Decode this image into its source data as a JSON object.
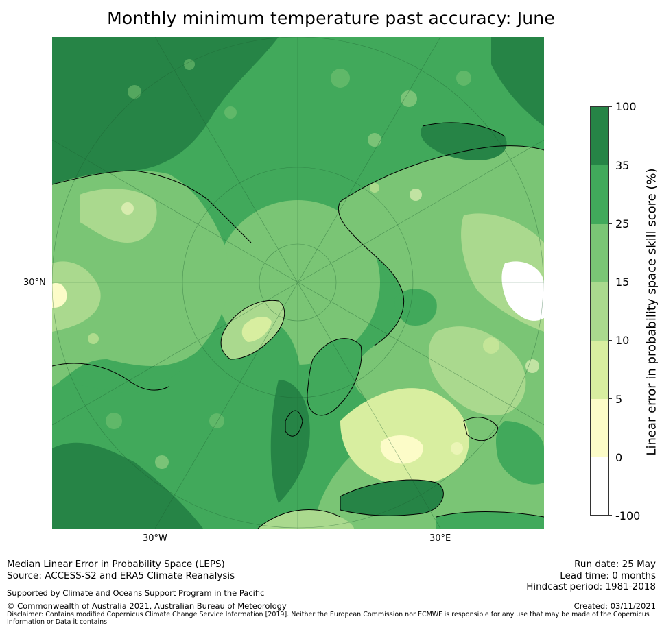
{
  "title": "Monthly minimum temperature past accuracy: June",
  "map": {
    "lon_labels": [
      "30°W",
      "30°E"
    ],
    "lat_label": "30°N",
    "projection": "north-polar-stereographic",
    "colors": {
      "water_high": "#268446",
      "land_mid": "#41a95b",
      "land_low": "#7ac575",
      "land_pale": "#aad98e",
      "land_yellow": "#d8eea0",
      "land_cream": "#fcfcc8",
      "graticule": "#1c5e30",
      "coast": "#000000"
    }
  },
  "colorbar": {
    "title": "Linear error in probability space skill score (%)",
    "levels": [
      "100",
      "35",
      "25",
      "15",
      "10",
      "5",
      "0",
      "-100"
    ],
    "colors": [
      "#268446",
      "#41a95b",
      "#7ac575",
      "#aad98e",
      "#d8eea0",
      "#fcfcc8",
      "#ffffff"
    ]
  },
  "footer": {
    "line1": "Median Linear Error in Probability Space (LEPS)",
    "line2": "Source: ACCESS-S2 and ERA5 Climate Reanalysis",
    "support": "Supported by Climate and Oceans Support Program in the Pacific",
    "copyright": "© Commonwealth of Australia 2021, Australian Bureau of Meteorology",
    "disclaimer": "Disclaimer: Contains modified Copernicus Climate Change Service Information [2019]. Neither the European Commission nor ECMWF is responsible for any use that may be made of the Copernicus Information or Data it contains.",
    "run_date": "Run date: 25 May",
    "lead_time": "Lead time: 0 months",
    "hindcast": "Hindcast period: 1981-2018",
    "created": "Created: 03/11/2021"
  }
}
